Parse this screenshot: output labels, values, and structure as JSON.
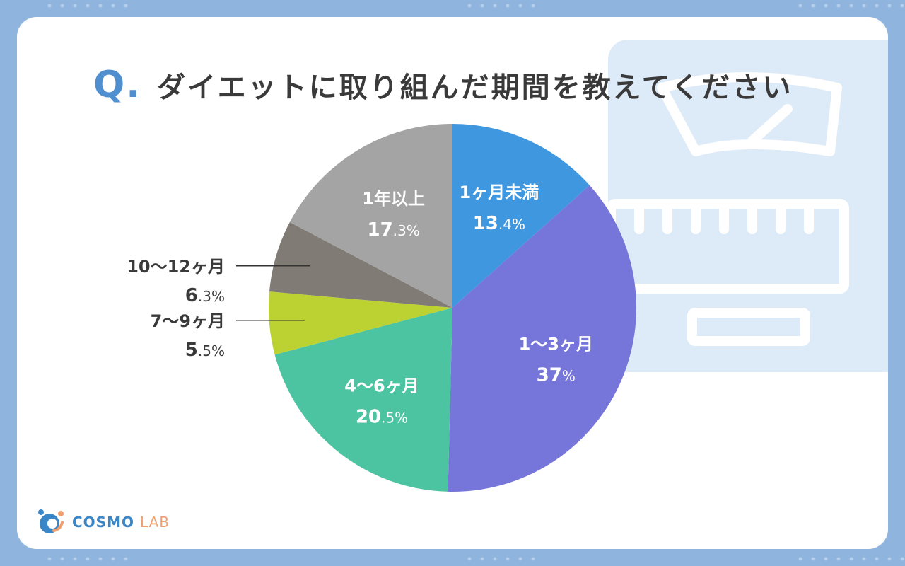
{
  "header": {
    "q_mark": "Q.",
    "title": "ダイエットに取り組んだ期間を教えてください"
  },
  "logo": {
    "name_main": "COSMO",
    "name_sub": "LAB"
  },
  "colors": {
    "background": "#8fb5de",
    "card": "#ffffff",
    "accent": "#4f8fd0",
    "scale_illustration": "#ddeaf7"
  },
  "icons": {
    "background_illustration": "scale-icon",
    "logo": "cosmo-lab-logo-icon"
  },
  "chart_data": {
    "type": "pie",
    "start_angle_deg": 0,
    "direction": "clockwise",
    "unit": "%",
    "slices": [
      {
        "label": "1ヶ月未満",
        "int": "13",
        "dec": ".4",
        "value": 13.4,
        "color": "#3e97df",
        "label_position": "inside"
      },
      {
        "label": "1〜3ヶ月",
        "int": "37",
        "dec": "",
        "value": 37,
        "color": "#7675d9",
        "label_position": "inside"
      },
      {
        "label": "4〜6ヶ月",
        "int": "20",
        "dec": ".5",
        "value": 20.5,
        "color": "#4dc4a1",
        "label_position": "inside"
      },
      {
        "label": "7〜9ヶ月",
        "int": "5",
        "dec": ".5",
        "value": 5.5,
        "color": "#bcd233",
        "label_position": "outside"
      },
      {
        "label": "10〜12ヶ月",
        "int": "6",
        "dec": ".3",
        "value": 6.3,
        "color": "#807b75",
        "label_position": "outside"
      },
      {
        "label": "1年以上",
        "int": "17",
        "dec": ".3",
        "value": 17.3,
        "color": "#a4a4a4",
        "label_position": "inside"
      }
    ]
  }
}
